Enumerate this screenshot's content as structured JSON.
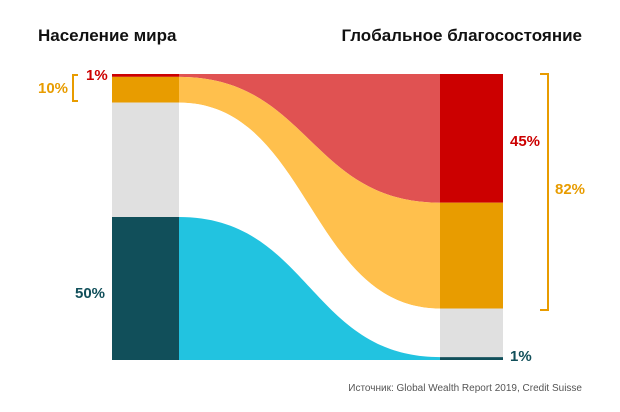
{
  "chart_data": {
    "type": "sankey",
    "left_title": "Население мира",
    "right_title": "Глобальное благосостояние",
    "source": "Источник: Global Wealth Report 2019, Credit Suisse",
    "flows": [
      {
        "population_share": 1,
        "wealth_share": 45,
        "color": "#e05252",
        "bar_left_color": "#cc0000",
        "bar_right_color": "#cc0000"
      },
      {
        "population_share": 9,
        "wealth_share": 37,
        "color": "#ffc04d",
        "bar_left_color": "#e89c00",
        "bar_right_color": "#e89c00"
      },
      {
        "population_share": 40,
        "wealth_share": 17,
        "color": "#ffffff",
        "bar_left_color": "#e0e0e0",
        "bar_right_color": "#e0e0e0"
      },
      {
        "population_share": 50,
        "wealth_share": 1,
        "color": "#22c3e0",
        "bar_left_color": "#114f5a",
        "bar_right_color": "#114f5a"
      }
    ],
    "labels": {
      "left_top": "1%",
      "left_bracket": "10%",
      "left_bottom": "50%",
      "right_top": "45%",
      "right_bracket": "82%",
      "right_bottom": "1%"
    },
    "label_colors": {
      "red": "#cc0000",
      "orange": "#e89c00",
      "teal": "#114f5a"
    }
  }
}
